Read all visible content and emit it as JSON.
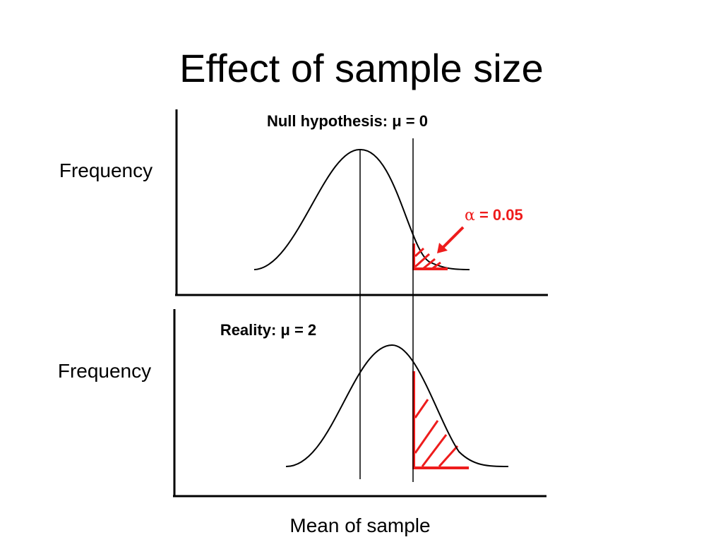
{
  "title": "Effect of sample size",
  "top_panel": {
    "label": "Null hypothesis: μ = 0",
    "ylabel": "Frequency",
    "alpha_symbol": "α",
    "alpha_text": " = 0.05"
  },
  "bottom_panel": {
    "label": "Reality: μ = 2",
    "ylabel": "Frequency"
  },
  "xlabel": "Mean of sample",
  "colors": {
    "curve": "#000000",
    "shade": "#ee1c1c",
    "axis": "#000000",
    "text": "#000000"
  }
}
